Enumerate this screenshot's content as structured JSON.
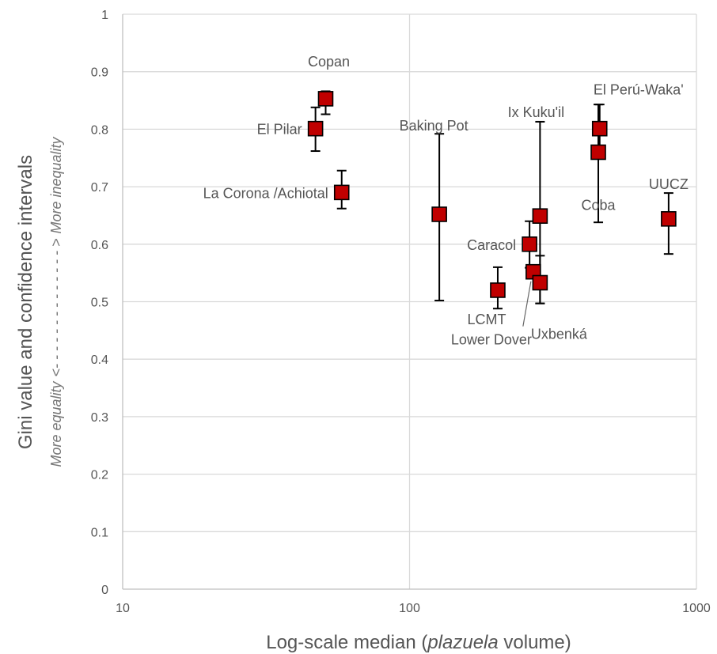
{
  "chart_data": {
    "type": "scatter",
    "xscale": "log",
    "xlim": [
      10,
      1000
    ],
    "ylim": [
      0,
      1
    ],
    "grid": true,
    "x_ticks": [
      "10",
      "100",
      "1000"
    ],
    "y_ticks": [
      "0",
      "0.1",
      "0.2",
      "0.3",
      "0.4",
      "0.5",
      "0.6",
      "0.7",
      "0.8",
      "0.9",
      "1"
    ],
    "xlabel": {
      "prefix": "Log-scale median (",
      "italic": "plazuela",
      "suffix": " volume)"
    },
    "ylabel": "Gini value and confidence intervals",
    "ylabel_secondary": {
      "left": "More equality",
      "arrow": "<- - - - - - - - - - - - - - >",
      "right": "More inequality"
    },
    "marker_color": "#C00000",
    "marker_edge": "#000000",
    "points": [
      {
        "label": "Copan",
        "x": 51,
        "y": 0.853,
        "ci_low": 0.826,
        "ci_high": 0.866
      },
      {
        "label": "El Pilar",
        "x": 47,
        "y": 0.801,
        "ci_low": 0.762,
        "ci_high": 0.838
      },
      {
        "label": "La Corona /Achiotal",
        "x": 58,
        "y": 0.69,
        "ci_low": 0.662,
        "ci_high": 0.728
      },
      {
        "label": "Baking Pot",
        "x": 127,
        "y": 0.652,
        "ci_low": 0.502,
        "ci_high": 0.792
      },
      {
        "label": "Ix Kuku'il",
        "x": 285,
        "y": 0.649,
        "ci_low": 0.497,
        "ci_high": 0.813
      },
      {
        "label": "Caracol",
        "x": 262,
        "y": 0.6,
        "ci_low": 0.559,
        "ci_high": 0.64
      },
      {
        "label": "LCMT",
        "x": 203,
        "y": 0.52,
        "ci_low": 0.488,
        "ci_high": 0.56
      },
      {
        "label": "Lower Dover",
        "x": 270,
        "y": 0.552,
        "ci_low": 0.552,
        "ci_high": 0.552
      },
      {
        "label": "Uxbenká",
        "x": 285,
        "y": 0.533,
        "ci_low": 0.497,
        "ci_high": 0.58
      },
      {
        "label": "El Perú-Waka'",
        "x": 460,
        "y": 0.801,
        "ci_low": 0.76,
        "ci_high": 0.843
      },
      {
        "label": "Coba",
        "x": 455,
        "y": 0.76,
        "ci_low": 0.638,
        "ci_high": 0.843
      },
      {
        "label": "UUCZ",
        "x": 800,
        "y": 0.644,
        "ci_low": 0.583,
        "ci_high": 0.689
      }
    ]
  }
}
